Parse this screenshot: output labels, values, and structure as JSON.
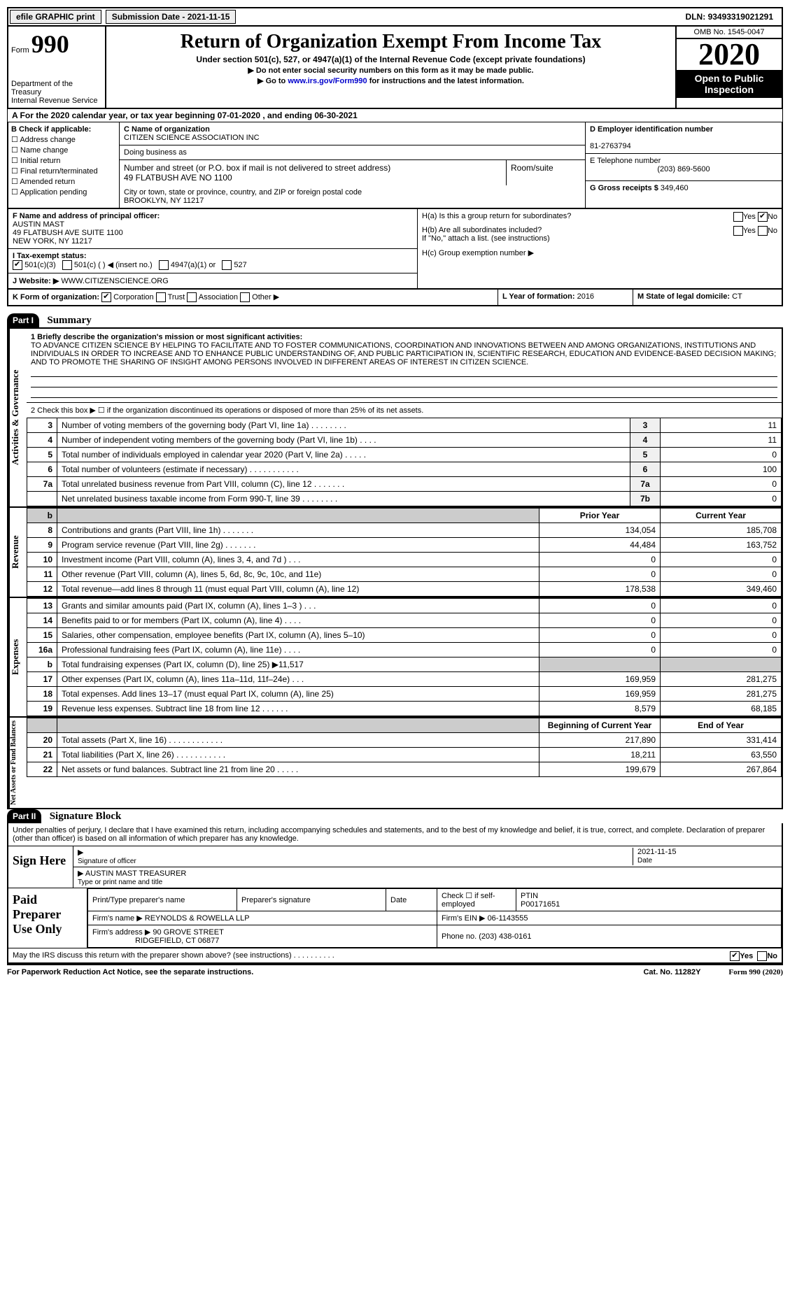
{
  "top": {
    "efile": "efile GRAPHIC print",
    "submission": "Submission Date - 2021-11-15",
    "dln_label": "DLN:",
    "dln": "93493319021291"
  },
  "header": {
    "form_label": "Form",
    "form_num": "990",
    "dept": "Department of the Treasury\nInternal Revenue Service",
    "title": "Return of Organization Exempt From Income Tax",
    "sub": "Under section 501(c), 527, or 4947(a)(1) of the Internal Revenue Code (except private foundations)",
    "note1": "▶ Do not enter social security numbers on this form as it may be made public.",
    "note2_pre": "▶ Go to ",
    "note2_link": "www.irs.gov/Form990",
    "note2_post": " for instructions and the latest information.",
    "omb": "OMB No. 1545-0047",
    "year": "2020",
    "open": "Open to Public Inspection"
  },
  "sectionA": "A  For the 2020 calendar year, or tax year beginning 07-01-2020   , and ending 06-30-2021",
  "B": {
    "label": "B Check if applicable:",
    "items": [
      "Address change",
      "Name change",
      "Initial return",
      "Final return/terminated",
      "Amended return",
      "Application pending"
    ]
  },
  "C": {
    "name_label": "C Name of organization",
    "name": "CITIZEN SCIENCE ASSOCIATION INC",
    "dba_label": "Doing business as",
    "street_label": "Number and street (or P.O. box if mail is not delivered to street address)",
    "street": "49 FLATBUSH AVE NO 1100",
    "room_label": "Room/suite",
    "city_label": "City or town, state or province, country, and ZIP or foreign postal code",
    "city": "BROOKLYN, NY  11217"
  },
  "D": {
    "label": "D Employer identification number",
    "val": "81-2763794"
  },
  "E": {
    "label": "E Telephone number",
    "val": "(203) 869-5600"
  },
  "G": {
    "label": "G Gross receipts $",
    "val": "349,460"
  },
  "F": {
    "label": "F  Name and address of principal officer:",
    "name": "AUSTIN MAST",
    "addr1": "49 FLATBUSH AVE SUITE 1100",
    "addr2": "NEW YORK, NY  11217"
  },
  "I": {
    "label": "I  Tax-exempt status:",
    "opts": [
      "501(c)(3)",
      "501(c) (  ) ◀ (insert no.)",
      "4947(a)(1) or",
      "527"
    ]
  },
  "J": {
    "label": "J  Website: ▶",
    "val": "WWW.CITIZENSCIENCE.ORG"
  },
  "H": {
    "a": "H(a)  Is this a group return for subordinates?",
    "b": "H(b)  Are all subordinates included?",
    "b_note": "If \"No,\" attach a list. (see instructions)",
    "c": "H(c)  Group exemption number ▶"
  },
  "K": {
    "label": "K Form of organization:",
    "opts": [
      "Corporation",
      "Trust",
      "Association",
      "Other ▶"
    ]
  },
  "L": {
    "label": "L Year of formation:",
    "val": "2016"
  },
  "M": {
    "label": "M State of legal domicile:",
    "val": "CT"
  },
  "part1": {
    "num": "Part I",
    "title": "Summary"
  },
  "mission": {
    "label": "1   Briefly describe the organization's mission or most significant activities:",
    "text": "TO ADVANCE CITIZEN SCIENCE BY HELPING TO FACILITATE AND TO FOSTER COMMUNICATIONS, COORDINATION AND INNOVATIONS BETWEEN AND AMONG ORGANIZATIONS, INSTITUTIONS AND INDIVIDUALS IN ORDER TO INCREASE AND TO ENHANCE PUBLIC UNDERSTANDING OF, AND PUBLIC PARTICIPATION IN, SCIENTIFIC RESEARCH, EDUCATION AND EVIDENCE-BASED DECISION MAKING; AND TO PROMOTE THE SHARING OF INSIGHT AMONG PERSONS INVOLVED IN DIFFERENT AREAS OF INTEREST IN CITIZEN SCIENCE."
  },
  "gov": {
    "side": "Activities & Governance",
    "line2": "2   Check this box ▶ ☐  if the organization discontinued its operations or disposed of more than 25% of its net assets.",
    "rows": [
      {
        "n": "3",
        "lab": "Number of voting members of the governing body (Part VI, line 1a)  .   .   .   .   .   .   .   .",
        "box": "3",
        "v": "11"
      },
      {
        "n": "4",
        "lab": "Number of independent voting members of the governing body (Part VI, line 1b)   .   .   .   .",
        "box": "4",
        "v": "11"
      },
      {
        "n": "5",
        "lab": "Total number of individuals employed in calendar year 2020 (Part V, line 2a)  .   .   .   .   .",
        "box": "5",
        "v": "0"
      },
      {
        "n": "6",
        "lab": "Total number of volunteers (estimate if necessary)   .   .   .   .   .   .   .   .   .   .   .",
        "box": "6",
        "v": "100"
      },
      {
        "n": "7a",
        "lab": "Total unrelated business revenue from Part VIII, column (C), line 12  .   .   .   .   .   .   .",
        "box": "7a",
        "v": "0"
      },
      {
        "n": "",
        "lab": "Net unrelated business taxable income from Form 990-T, line 39  .   .   .   .   .   .   .   .",
        "box": "7b",
        "v": "0"
      }
    ]
  },
  "rev": {
    "side": "Revenue",
    "hdr_prior": "Prior Year",
    "hdr_curr": "Current Year",
    "rows": [
      {
        "n": "8",
        "lab": "Contributions and grants (Part VIII, line 1h)   .   .   .   .   .   .   .",
        "p": "134,054",
        "c": "185,708"
      },
      {
        "n": "9",
        "lab": "Program service revenue (Part VIII, line 2g)   .   .   .   .   .   .   .",
        "p": "44,484",
        "c": "163,752"
      },
      {
        "n": "10",
        "lab": "Investment income (Part VIII, column (A), lines 3, 4, and 7d )   .   .   .",
        "p": "0",
        "c": "0"
      },
      {
        "n": "11",
        "lab": "Other revenue (Part VIII, column (A), lines 5, 6d, 8c, 9c, 10c, and 11e)",
        "p": "0",
        "c": "0"
      },
      {
        "n": "12",
        "lab": "Total revenue—add lines 8 through 11 (must equal Part VIII, column (A), line 12)",
        "p": "178,538",
        "c": "349,460"
      }
    ]
  },
  "exp": {
    "side": "Expenses",
    "rows": [
      {
        "n": "13",
        "lab": "Grants and similar amounts paid (Part IX, column (A), lines 1–3 )  .   .   .",
        "p": "0",
        "c": "0"
      },
      {
        "n": "14",
        "lab": "Benefits paid to or for members (Part IX, column (A), line 4)   .   .   .   .",
        "p": "0",
        "c": "0"
      },
      {
        "n": "15",
        "lab": "Salaries, other compensation, employee benefits (Part IX, column (A), lines 5–10)",
        "p": "0",
        "c": "0"
      },
      {
        "n": "16a",
        "lab": "Professional fundraising fees (Part IX, column (A), line 11e)  .   .   .   .",
        "p": "0",
        "c": "0"
      },
      {
        "n": "b",
        "lab": "Total fundraising expenses (Part IX, column (D), line 25) ▶11,517",
        "p": "",
        "c": "",
        "shade": true
      },
      {
        "n": "17",
        "lab": "Other expenses (Part IX, column (A), lines 11a–11d, 11f–24e)   .   .   .",
        "p": "169,959",
        "c": "281,275"
      },
      {
        "n": "18",
        "lab": "Total expenses. Add lines 13–17 (must equal Part IX, column (A), line 25)",
        "p": "169,959",
        "c": "281,275"
      },
      {
        "n": "19",
        "lab": "Revenue less expenses. Subtract line 18 from line 12  .   .   .   .   .   .",
        "p": "8,579",
        "c": "68,185"
      }
    ]
  },
  "net": {
    "side": "Net Assets or Fund Balances",
    "hdr_beg": "Beginning of Current Year",
    "hdr_end": "End of Year",
    "rows": [
      {
        "n": "20",
        "lab": "Total assets (Part X, line 16)  .   .   .   .   .   .   .   .   .   .   .   .",
        "p": "217,890",
        "c": "331,414"
      },
      {
        "n": "21",
        "lab": "Total liabilities (Part X, line 26)  .   .   .   .   .   .   .   .   .   .   .",
        "p": "18,211",
        "c": "63,550"
      },
      {
        "n": "22",
        "lab": "Net assets or fund balances. Subtract line 21 from line 20  .   .   .   .   .",
        "p": "199,679",
        "c": "267,864"
      }
    ]
  },
  "part2": {
    "num": "Part II",
    "title": "Signature Block"
  },
  "penalty": "Under penalties of perjury, I declare that I have examined this return, including accompanying schedules and statements, and to the best of my knowledge and belief, it is true, correct, and complete. Declaration of preparer (other than officer) is based on all information of which preparer has any knowledge.",
  "sign": {
    "label": "Sign Here",
    "sig_officer": "Signature of officer",
    "date": "Date",
    "date_val": "2021-11-15",
    "name": "AUSTIN MAST TREASURER",
    "name_lab": "Type or print name and title"
  },
  "prep": {
    "label": "Paid Preparer Use Only",
    "h1": "Print/Type preparer's name",
    "h2": "Preparer's signature",
    "h3": "Date",
    "h4_pre": "Check ☐ if self-employed",
    "h5": "PTIN",
    "ptin": "P00171651",
    "firm_lab": "Firm's name    ▶",
    "firm": "REYNOLDS & ROWELLA LLP",
    "ein_lab": "Firm's EIN ▶",
    "ein": "06-1143555",
    "addr_lab": "Firm's address ▶",
    "addr1": "90 GROVE STREET",
    "addr2": "RIDGEFIELD, CT  06877",
    "phone_lab": "Phone no.",
    "phone": "(203) 438-0161"
  },
  "discuss": "May the IRS discuss this return with the preparer shown above? (see instructions)   .   .   .   .   .   .   .   .   .   .",
  "footer": {
    "l": "For Paperwork Reduction Act Notice, see the separate instructions.",
    "m": "Cat. No. 11282Y",
    "r": "Form 990 (2020)"
  },
  "yes": "Yes",
  "no": "No"
}
